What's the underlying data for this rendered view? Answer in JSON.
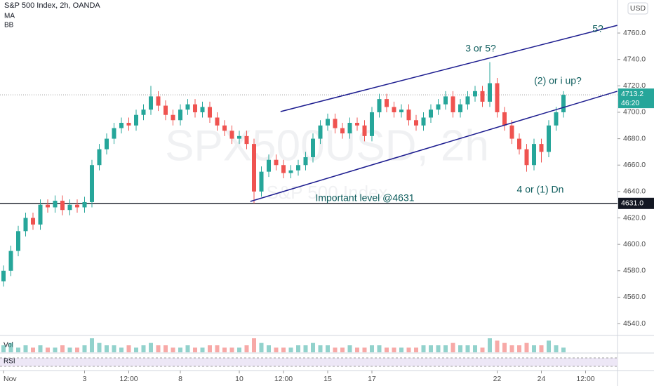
{
  "chart_data": {
    "type": "candlestick",
    "title": "S&P 500 Index, 2h, OANDA",
    "indicators": [
      "MA",
      "BB"
    ],
    "currency": "USD",
    "watermark": "SPX500USD, 2h",
    "watermark_sub": "S&P 500 Index",
    "categories": [
      "Nov",
      null,
      null,
      null,
      null,
      null,
      null,
      null,
      null,
      null,
      null,
      "3",
      null,
      null,
      null,
      null,
      null,
      "12:00",
      null,
      null,
      null,
      null,
      null,
      null,
      "8",
      null,
      null,
      null,
      null,
      null,
      null,
      null,
      "10",
      null,
      null,
      null,
      null,
      null,
      "12:00",
      null,
      null,
      null,
      null,
      null,
      "15",
      null,
      null,
      null,
      null,
      null,
      "17",
      null,
      null,
      null,
      null,
      null,
      null,
      null,
      null,
      null,
      null,
      null,
      null,
      null,
      null,
      null,
      null,
      "22",
      null,
      null,
      null,
      null,
      null,
      "24",
      null,
      null,
      null,
      null,
      null,
      "12:00"
    ],
    "open": [
      4572,
      4580,
      4595,
      4610,
      4620,
      4615,
      4630,
      4628,
      4633,
      4626,
      4630,
      4628,
      4632,
      4660,
      4672,
      4680,
      4688,
      4692,
      4690,
      4698,
      4702,
      4712,
      4705,
      4698,
      4694,
      4702,
      4706,
      4700,
      4704,
      4696,
      4690,
      4686,
      4680,
      4682,
      4676,
      4640,
      4655,
      4664,
      4660,
      4654,
      4656,
      4660,
      4666,
      4680,
      4690,
      4695,
      4688,
      4684,
      4692,
      4690,
      4682,
      4700,
      4710,
      4704,
      4700,
      4702,
      4694,
      4690,
      4696,
      4702,
      4706,
      4712,
      4700,
      4706,
      4712,
      4716,
      4708,
      4722,
      4700,
      4690,
      4680,
      4672,
      4660,
      4676,
      4670,
      4690,
      4700,
      null,
      null,
      null
    ],
    "high": [
      4584,
      4599,
      4614,
      4624,
      4624,
      4634,
      4634,
      4637,
      4637,
      4634,
      4634,
      4636,
      4664,
      4676,
      4684,
      4692,
      4696,
      4696,
      4702,
      4706,
      4720,
      4716,
      4709,
      4702,
      4706,
      4710,
      4710,
      4708,
      4708,
      4700,
      4694,
      4690,
      4686,
      4686,
      4680,
      4659,
      4668,
      4668,
      4664,
      4660,
      4664,
      4670,
      4684,
      4694,
      4699,
      4699,
      4692,
      4696,
      4696,
      4694,
      4704,
      4714,
      4714,
      4708,
      4706,
      4706,
      4698,
      4700,
      4706,
      4710,
      4716,
      4716,
      4710,
      4716,
      4720,
      4720,
      4738,
      4726,
      4704,
      4694,
      4684,
      4676,
      4680,
      4680,
      4694,
      4704,
      4716,
      null,
      null,
      null
    ],
    "low": [
      4568,
      4576,
      4591,
      4606,
      4611,
      4611,
      4624,
      4624,
      4622,
      4622,
      4624,
      4624,
      4628,
      4656,
      4668,
      4676,
      4684,
      4686,
      4686,
      4694,
      4698,
      4701,
      4694,
      4690,
      4690,
      4698,
      4696,
      4696,
      4692,
      4686,
      4682,
      4676,
      4676,
      4672,
      4631,
      4636,
      4651,
      4656,
      4650,
      4650,
      4652,
      4656,
      4662,
      4676,
      4686,
      4684,
      4680,
      4680,
      4686,
      4678,
      4678,
      4696,
      4700,
      4696,
      4696,
      4690,
      4686,
      4686,
      4692,
      4698,
      4702,
      4696,
      4696,
      4702,
      4708,
      4704,
      4704,
      4696,
      4686,
      4676,
      4668,
      4655,
      4656,
      4662,
      4666,
      4686,
      4696,
      null,
      null,
      null
    ],
    "close": [
      4580,
      4595,
      4610,
      4620,
      4615,
      4630,
      4628,
      4633,
      4626,
      4630,
      4628,
      4632,
      4660,
      4672,
      4680,
      4688,
      4692,
      4690,
      4698,
      4702,
      4712,
      4705,
      4698,
      4694,
      4702,
      4706,
      4700,
      4704,
      4696,
      4690,
      4686,
      4680,
      4682,
      4676,
      4640,
      4655,
      4664,
      4660,
      4654,
      4656,
      4660,
      4666,
      4680,
      4690,
      4695,
      4688,
      4684,
      4692,
      4690,
      4682,
      4700,
      4710,
      4704,
      4700,
      4702,
      4694,
      4690,
      4696,
      4702,
      4706,
      4712,
      4700,
      4706,
      4712,
      4716,
      4708,
      4722,
      4700,
      4690,
      4680,
      4672,
      4660,
      4676,
      4670,
      4690,
      4700,
      4713.2,
      null,
      null,
      null
    ],
    "volume_label": "Vol",
    "volume": [
      3,
      4,
      2,
      3,
      2,
      3,
      2,
      2,
      3,
      2,
      2,
      3,
      6,
      4,
      3,
      3,
      2,
      3,
      2,
      3,
      4,
      3,
      3,
      2,
      2,
      3,
      2,
      2,
      3,
      3,
      2,
      2,
      2,
      3,
      6,
      4,
      3,
      2,
      2,
      2,
      3,
      3,
      4,
      3,
      3,
      2,
      2,
      3,
      2,
      2,
      3,
      3,
      2,
      2,
      2,
      2,
      2,
      3,
      3,
      3,
      3,
      4,
      3,
      3,
      3,
      2,
      6,
      5,
      4,
      3,
      3,
      4,
      3,
      3,
      5,
      3,
      2,
      null,
      null,
      null
    ],
    "rsi_label": "RSI",
    "up_color": "#26a69a",
    "down_color": "#ef5350",
    "ylim": [
      4531,
      4785
    ],
    "yticks": [
      {
        "value": 4540,
        "label": "4540.0"
      },
      {
        "value": 4560,
        "label": "4560.0"
      },
      {
        "value": 4580,
        "label": "4580.0"
      },
      {
        "value": 4600,
        "label": "4600.0"
      },
      {
        "value": 4620,
        "label": "4620.0"
      },
      {
        "value": 4640,
        "label": "4640.0"
      },
      {
        "value": 4660,
        "label": "4660.0"
      },
      {
        "value": 4680,
        "label": "4680.0"
      },
      {
        "value": 4700,
        "label": "4700.0"
      },
      {
        "value": 4720,
        "label": "4720.0"
      },
      {
        "value": 4740,
        "label": "4740.0"
      },
      {
        "value": 4760,
        "label": "4760.0"
      }
    ],
    "last_price": 4713.2,
    "countdown": "46:20",
    "level": {
      "value": 4631,
      "label": "4631.0"
    },
    "trendlines": [
      {
        "x": [
          37.6,
          83.3
        ],
        "y": [
          4700.5,
          4765.8
        ],
        "color": "#1c1c8f"
      },
      {
        "x": [
          33.5,
          83.3
        ],
        "y": [
          4632.5,
          4715.9
        ],
        "color": "#1c1c8f"
      }
    ],
    "annotations": [
      "3 or 5?",
      "5?",
      "(2) or i up?",
      "4 or (1) Dn",
      "Important level @4631"
    ],
    "annotation_color": "#0d5c5c"
  }
}
